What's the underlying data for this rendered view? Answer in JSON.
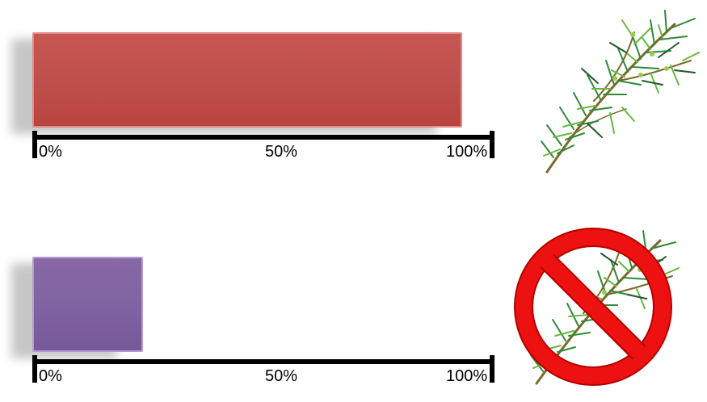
{
  "chart_data": [
    {
      "type": "bar",
      "orientation": "horizontal",
      "values": [
        93
      ],
      "xlim": [
        0,
        100
      ],
      "tick_labels": [
        "0%",
        "50%",
        "100%"
      ],
      "color": "#c0504d",
      "icon": "tea-tree-sprig-icon"
    },
    {
      "type": "bar",
      "orientation": "horizontal",
      "values": [
        24
      ],
      "xlim": [
        0,
        100
      ],
      "tick_labels": [
        "0%",
        "50%",
        "100%"
      ],
      "color": "#8064a2",
      "icon": "no-tea-tree-prohibition-icon"
    }
  ]
}
